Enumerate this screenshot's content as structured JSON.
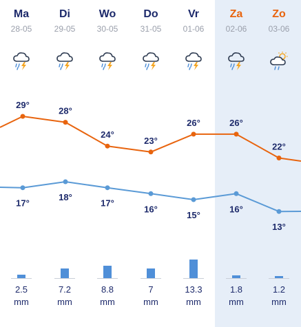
{
  "colors": {
    "max_line": "#e8640e",
    "min_line": "#5a9ad6",
    "weekend_background": "#e6eef8",
    "precip_bar": "#4f8fd8",
    "text_dark": "#1d2a6b",
    "text_weekend": "#e8640e",
    "text_date": "#9a9fab"
  },
  "days": [
    {
      "name": "Ma",
      "date": "28-05",
      "icon": "thunderstorm-icon",
      "max": "29°",
      "min": "17°",
      "precip": "2.5",
      "unit": "mm",
      "weekend": false
    },
    {
      "name": "Di",
      "date": "29-05",
      "icon": "thunderstorm-icon",
      "max": "28°",
      "min": "18°",
      "precip": "7.2",
      "unit": "mm",
      "weekend": false
    },
    {
      "name": "Wo",
      "date": "30-05",
      "icon": "thunderstorm-icon",
      "max": "24°",
      "min": "17°",
      "precip": "8.8",
      "unit": "mm",
      "weekend": false
    },
    {
      "name": "Do",
      "date": "31-05",
      "icon": "thunderstorm-icon",
      "max": "23°",
      "min": "16°",
      "precip": "7",
      "unit": "mm",
      "weekend": false
    },
    {
      "name": "Vr",
      "date": "01-06",
      "icon": "thunderstorm-icon",
      "max": "26°",
      "min": "15°",
      "precip": "13.3",
      "unit": "mm",
      "weekend": false
    },
    {
      "name": "Za",
      "date": "02-06",
      "icon": "thunderstorm-icon",
      "max": "26°",
      "min": "16°",
      "precip": "1.8",
      "unit": "mm",
      "weekend": true
    },
    {
      "name": "Zo",
      "date": "03-06",
      "icon": "sun-cloud-rain-icon",
      "max": "22°",
      "min": "13°",
      "precip": "1.2",
      "unit": "mm",
      "weekend": true
    }
  ],
  "chart_data": {
    "type": "line",
    "categories": [
      "Ma",
      "Di",
      "Wo",
      "Do",
      "Vr",
      "Za",
      "Zo"
    ],
    "series": [
      {
        "values": [
          29,
          28,
          24,
          23,
          26,
          26,
          22
        ]
      },
      {
        "values": [
          17,
          18,
          17,
          16,
          15,
          16,
          13
        ]
      }
    ],
    "precipitation_mm": [
      2.5,
      7.2,
      8.8,
      7,
      13.3,
      1.8,
      1.2
    ]
  }
}
